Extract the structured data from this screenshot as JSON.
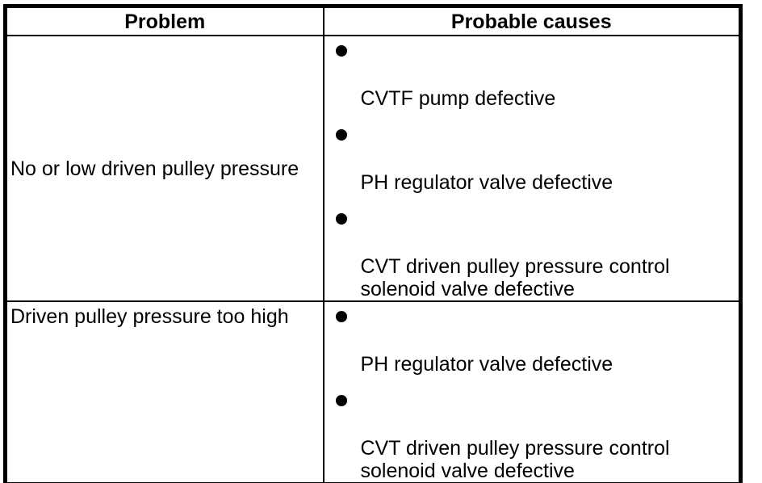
{
  "colors": {
    "border": "#000000",
    "text": "#000000",
    "background": "#ffffff"
  },
  "table": {
    "headers": [
      {
        "label": "Problem"
      },
      {
        "label": "Probable causes"
      }
    ],
    "rows": [
      {
        "problem": "No or low driven pulley pressure",
        "causes": [
          "CVTF pump defective",
          "PH regulator valve defective",
          "CVT driven pulley pressure control solenoid valve defective"
        ]
      },
      {
        "problem": "Driven pulley pressure too high",
        "causes": [
          "PH regulator valve defective",
          "CVT driven pulley pressure control solenoid valve defective"
        ]
      }
    ]
  }
}
